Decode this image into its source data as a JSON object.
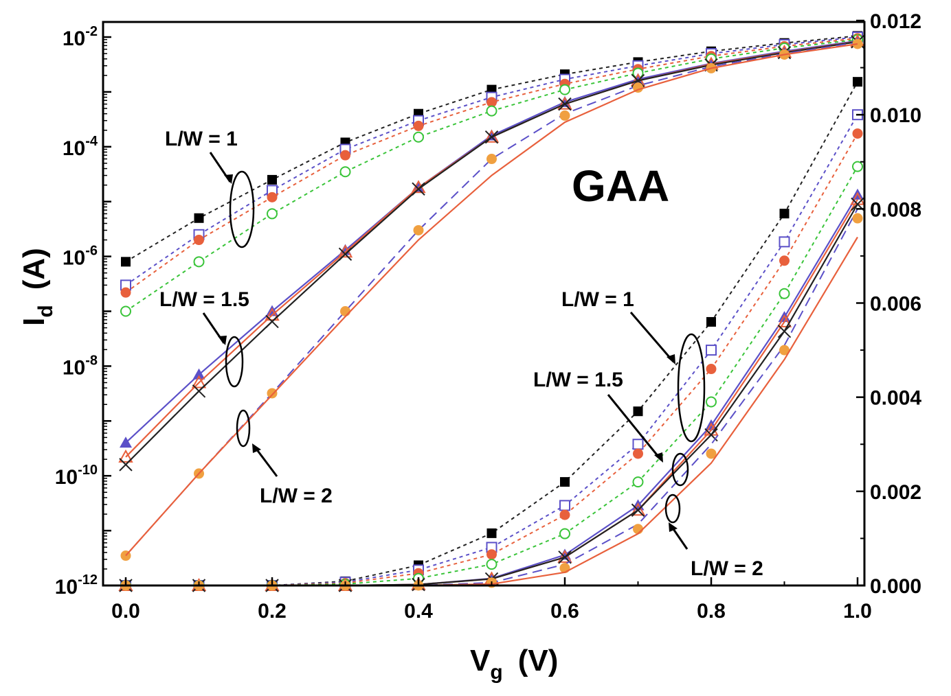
{
  "chart_data": {
    "type": "line",
    "title": "",
    "inset_label": "GAA",
    "xlabel": {
      "main": "V",
      "sub": "g",
      "unit": "(V)"
    },
    "ylabel_left": {
      "main": "I",
      "sub": "d",
      "unit": "(A)"
    },
    "ylabel_right": "",
    "xlim": [
      -0.02,
      1.01
    ],
    "ylim_left_log": [
      1e-12,
      0.03
    ],
    "ylim_right": [
      0,
      0.012
    ],
    "y_left_scale": "log",
    "grid": false,
    "x_ticks": [
      "0.0",
      "0.2",
      "0.4",
      "0.6",
      "0.8",
      "1.0"
    ],
    "x_tick_values": [
      0,
      0.2,
      0.4,
      0.6,
      0.8,
      1.0
    ],
    "y_left_ticks": [
      {
        "mantissa": "10",
        "exp": "-2",
        "value": 0.01
      },
      {
        "mantissa": "10",
        "exp": "-4",
        "value": 0.0001
      },
      {
        "mantissa": "10",
        "exp": "-6",
        "value": 1e-06
      },
      {
        "mantissa": "10",
        "exp": "-8",
        "value": 1e-08
      },
      {
        "mantissa": "10",
        "exp": "-10",
        "value": 1e-10
      },
      {
        "mantissa": "10",
        "exp": "-12",
        "value": 1e-12
      }
    ],
    "y_right_ticks": [
      "0.012",
      "0.010",
      "0.008",
      "0.006",
      "0.004",
      "0.002",
      "0.000"
    ],
    "y_right_tick_values": [
      0.012,
      0.01,
      0.008,
      0.006,
      0.004,
      0.002,
      0.0
    ],
    "x": [
      0,
      0.1,
      0.2,
      0.3,
      0.4,
      0.5,
      0.6,
      0.7,
      0.8,
      0.9,
      1.0
    ],
    "series": [
      {
        "group": "L/W = 1",
        "axis": "log",
        "color": "#222222",
        "marker": "square-filled",
        "dash": "dotted",
        "show_line": true,
        "values": [
          8e-07,
          5e-06,
          2.5e-05,
          0.00012,
          0.0004,
          0.0011,
          0.0021,
          0.0035,
          0.0055,
          0.0078,
          0.0105
        ]
      },
      {
        "group": "L/W = 1",
        "axis": "log",
        "color": "#5b50c8",
        "marker": "square-open",
        "dash": "dotted",
        "show_line": true,
        "values": [
          3e-07,
          2.5e-06,
          1.6e-05,
          9e-05,
          0.0003,
          0.0008,
          0.0017,
          0.003,
          0.005,
          0.0073,
          0.01
        ]
      },
      {
        "group": "L/W = 1",
        "axis": "log",
        "color": "#e8603c",
        "marker": "circle-filled",
        "dash": "dotted",
        "show_line": true,
        "values": [
          2.2e-07,
          2e-06,
          1.2e-05,
          7e-05,
          0.00024,
          0.00065,
          0.0014,
          0.0026,
          0.0045,
          0.0068,
          0.0095
        ]
      },
      {
        "group": "L/W = 1",
        "axis": "log",
        "color": "#39c439",
        "marker": "circle-open",
        "dash": "dotted",
        "show_line": true,
        "values": [
          1e-07,
          8e-07,
          6e-06,
          3.5e-05,
          0.00015,
          0.00045,
          0.0011,
          0.0022,
          0.004,
          0.0063,
          0.009
        ]
      },
      {
        "group": "L/W = 1.5",
        "axis": "log",
        "color": "#5b50c8",
        "marker": "triangle-filled",
        "dash": "solid",
        "show_line": true,
        "values": [
          4e-10,
          7e-09,
          1e-07,
          1.3e-06,
          1.8e-05,
          0.00016,
          0.00065,
          0.0017,
          0.0033,
          0.0055,
          0.0085
        ]
      },
      {
        "group": "L/W = 1.5",
        "axis": "log",
        "color": "#e8603c",
        "marker": "triangle-open",
        "dash": "solid",
        "show_line": true,
        "values": [
          2.2e-10,
          5e-09,
          8.5e-08,
          1.2e-06,
          1.8e-05,
          0.00015,
          0.0006,
          0.0016,
          0.0032,
          0.0053,
          0.0083
        ]
      },
      {
        "group": "L/W = 1.5",
        "axis": "log",
        "color": "#222222",
        "marker": "x",
        "dash": "solid",
        "show_line": true,
        "values": [
          1.6e-10,
          3.5e-09,
          6.5e-08,
          1.1e-06,
          1.7e-05,
          0.00015,
          0.0006,
          0.0016,
          0.0031,
          0.0052,
          0.0082
        ]
      },
      {
        "group": "L/W = 2",
        "axis": "log",
        "color": "#5b50c8",
        "marker": "none",
        "dash": "dashed",
        "show_line": true,
        "values": [
          3.5e-12,
          1.1e-10,
          3.2e-09,
          1e-07,
          3e-06,
          6e-05,
          0.0004,
          0.0013,
          0.0029,
          0.005,
          0.008
        ]
      },
      {
        "group": "L/W = 2",
        "axis": "log",
        "color": "#f0a040",
        "marker": "circle-filled",
        "dash": "none",
        "show_line": false,
        "values": [
          3.5e-12,
          1.1e-10,
          3.2e-09,
          1e-07,
          3e-06,
          6e-05,
          0.00037,
          0.0012,
          0.0027,
          0.0048,
          0.0075
        ]
      },
      {
        "group": "L/W = 2",
        "axis": "log",
        "color": "#e8603c",
        "marker": "none",
        "dash": "solid",
        "show_line": true,
        "values": [
          3.5e-12,
          1.1e-10,
          3e-09,
          8e-08,
          2e-06,
          3e-05,
          0.00028,
          0.0011,
          0.0027,
          0.0048,
          0.0075
        ]
      },
      {
        "group": "L/W = 1",
        "axis": "linear",
        "color": "#222222",
        "marker": "square-filled",
        "dash": "dotted",
        "show_line": true,
        "values": [
          0,
          0,
          0,
          9e-05,
          0.00043,
          0.00111,
          0.0022,
          0.0037,
          0.0056,
          0.0079,
          0.0107
        ]
      },
      {
        "group": "L/W = 1",
        "axis": "linear",
        "color": "#5b50c8",
        "marker": "square-open",
        "dash": "dotted",
        "show_line": true,
        "values": [
          0,
          0,
          0,
          7e-05,
          0.00033,
          0.00081,
          0.0017,
          0.003,
          0.005,
          0.0073,
          0.01
        ]
      },
      {
        "group": "L/W = 1",
        "axis": "linear",
        "color": "#e8603c",
        "marker": "circle-filled",
        "dash": "dotted",
        "show_line": true,
        "values": [
          0,
          0,
          0,
          5e-05,
          0.00026,
          0.00066,
          0.0015,
          0.0028,
          0.0046,
          0.0069,
          0.0096
        ]
      },
      {
        "group": "L/W = 1",
        "axis": "linear",
        "color": "#39c439",
        "marker": "circle-open",
        "dash": "dotted",
        "show_line": true,
        "values": [
          0,
          0,
          0,
          3e-05,
          0.00015,
          0.00045,
          0.0011,
          0.0022,
          0.0039,
          0.0062,
          0.0089
        ]
      },
      {
        "group": "L/W = 1.5",
        "axis": "linear",
        "color": "#5b50c8",
        "marker": "triangle-filled",
        "dash": "solid",
        "show_line": true,
        "values": [
          0,
          0,
          0,
          0,
          2e-05,
          0.00015,
          0.00065,
          0.0017,
          0.0034,
          0.0057,
          0.0083
        ]
      },
      {
        "group": "L/W = 1.5",
        "axis": "linear",
        "color": "#e8603c",
        "marker": "triangle-open",
        "dash": "solid",
        "show_line": true,
        "values": [
          0,
          0,
          0,
          0,
          2e-05,
          0.00014,
          0.0006,
          0.0016,
          0.0033,
          0.0056,
          0.0082
        ]
      },
      {
        "group": "L/W = 1.5",
        "axis": "linear",
        "color": "#222222",
        "marker": "x",
        "dash": "solid",
        "show_line": true,
        "values": [
          0,
          0,
          0,
          0,
          2e-05,
          0.00014,
          0.0006,
          0.0016,
          0.0032,
          0.0054,
          0.0081
        ]
      },
      {
        "group": "L/W = 2",
        "axis": "linear",
        "color": "#5b50c8",
        "marker": "none",
        "dash": "dashed",
        "show_line": true,
        "values": [
          0,
          0,
          0,
          0,
          0,
          6e-05,
          0.00045,
          0.0013,
          0.003,
          0.0051,
          0.008
        ]
      },
      {
        "group": "L/W = 2",
        "axis": "linear",
        "color": "#f0a040",
        "marker": "circle-filled",
        "dash": "none",
        "show_line": false,
        "values": [
          0,
          0,
          0,
          0,
          0,
          6e-05,
          0.00037,
          0.0012,
          0.0028,
          0.005,
          0.0078
        ]
      },
      {
        "group": "L/W = 2",
        "axis": "linear",
        "color": "#e8603c",
        "marker": "none",
        "dash": "solid",
        "show_line": true,
        "values": [
          0,
          0,
          0,
          0,
          0,
          3e-05,
          0.00028,
          0.0011,
          0.0026,
          0.0048,
          0.0074
        ]
      }
    ],
    "annotations": [
      {
        "text": "L/W = 1",
        "target": "log"
      },
      {
        "text": "L/W = 1.5",
        "target": "log"
      },
      {
        "text": "L/W = 2",
        "target": "log"
      },
      {
        "text": "L/W = 1",
        "target": "linear"
      },
      {
        "text": "L/W = 1.5",
        "target": "linear"
      },
      {
        "text": "L/W = 2",
        "target": "linear"
      }
    ]
  }
}
